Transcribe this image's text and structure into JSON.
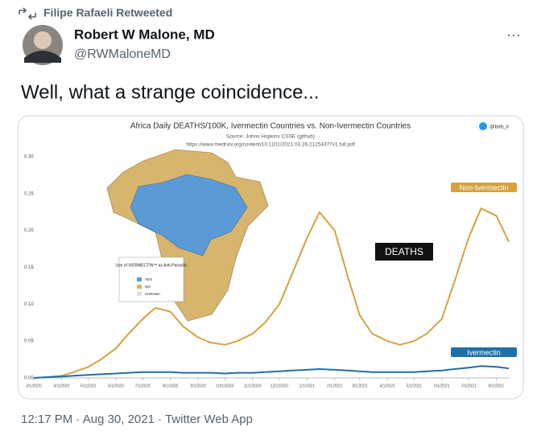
{
  "retweet_label": "Filipe Rafaeli Retweeted",
  "author": {
    "name": "Robert W Malone, MD",
    "handle": "@RWMaloneMD"
  },
  "tweet_text": "Well, what a strange coincidence...",
  "timestamp": "12:17 PM · Aug 30, 2021 · Twitter Web App",
  "chart_data": {
    "type": "line",
    "title": "Africa Daily DEATHS/100K, Ivermectin Countries vs. Non-Ivermectin Countries",
    "subtitle": [
      "Source: Johns Hopkins CSSE (github)",
      "https://www.medrxiv.org/content/10.1101/2021.03.26.21254377v1.full.pdf"
    ],
    "credit": "@birb_k",
    "annotation": "DEATHS",
    "map_legend": {
      "title": "Use of IVERMECTIN™ as Anti-Parasitic",
      "items": [
        "YES",
        "NO",
        "Unknown"
      ]
    },
    "x": [
      "3/1/2020",
      "3/15/2020",
      "4/1/2020",
      "4/15/2020",
      "5/1/2020",
      "5/15/2020",
      "6/1/2020",
      "6/15/2020",
      "7/1/2020",
      "7/15/2020",
      "8/1/2020",
      "8/15/2020",
      "9/1/2020",
      "9/15/2020",
      "10/1/2020",
      "10/15/2020",
      "11/1/2020",
      "11/15/2020",
      "12/1/2020",
      "12/15/2020",
      "1/1/2021",
      "1/15/2021",
      "2/1/2021",
      "2/15/2021",
      "3/1/2021",
      "3/15/2021",
      "4/1/2021",
      "4/15/2021",
      "5/1/2021",
      "5/15/2021",
      "6/1/2021",
      "6/15/2021",
      "7/1/2021",
      "7/15/2021",
      "8/1/2021",
      "8/15/2021"
    ],
    "series": [
      {
        "name": "Non-Ivermectin",
        "color": "#d6a23e",
        "values": [
          0,
          0.001,
          0.003,
          0.008,
          0.015,
          0.025,
          0.04,
          0.06,
          0.08,
          0.095,
          0.09,
          0.07,
          0.055,
          0.048,
          0.045,
          0.05,
          0.06,
          0.075,
          0.1,
          0.14,
          0.19,
          0.225,
          0.2,
          0.14,
          0.085,
          0.06,
          0.05,
          0.045,
          0.05,
          0.06,
          0.08,
          0.13,
          0.19,
          0.23,
          0.22,
          0.185
        ]
      },
      {
        "name": "Ivermectin",
        "color": "#1f6fa8",
        "values": [
          0,
          0.001,
          0.002,
          0.003,
          0.004,
          0.005,
          0.006,
          0.007,
          0.008,
          0.008,
          0.008,
          0.007,
          0.007,
          0.007,
          0.006,
          0.007,
          0.007,
          0.008,
          0.009,
          0.01,
          0.011,
          0.012,
          0.011,
          0.01,
          0.009,
          0.008,
          0.008,
          0.008,
          0.008,
          0.009,
          0.01,
          0.012,
          0.014,
          0.016,
          0.015,
          0.013
        ]
      }
    ],
    "xlim": [
      "3/1/2020",
      "8/15/2021"
    ],
    "xticks": [
      "3/1/2020",
      "4/1/2020",
      "5/1/2020",
      "6/1/2020",
      "7/1/2020",
      "8/1/2020",
      "9/1/2020",
      "10/1/2020",
      "11/1/2020",
      "12/1/2020",
      "1/1/2021",
      "2/1/2021",
      "3/1/2021",
      "4/1/2021",
      "5/1/2021",
      "6/1/2021",
      "7/1/2021",
      "8/1/2021"
    ],
    "ylim": [
      0,
      0.3
    ],
    "yticks": [
      {
        "value": 0,
        "label": "0.00"
      },
      0.05,
      {
        "value": 0.1,
        "label": "0.10"
      },
      0.15,
      {
        "value": 0.2,
        "label": "0.20"
      },
      0.25,
      {
        "value": 0.3,
        "label": "0.30"
      }
    ],
    "grid": false
  }
}
